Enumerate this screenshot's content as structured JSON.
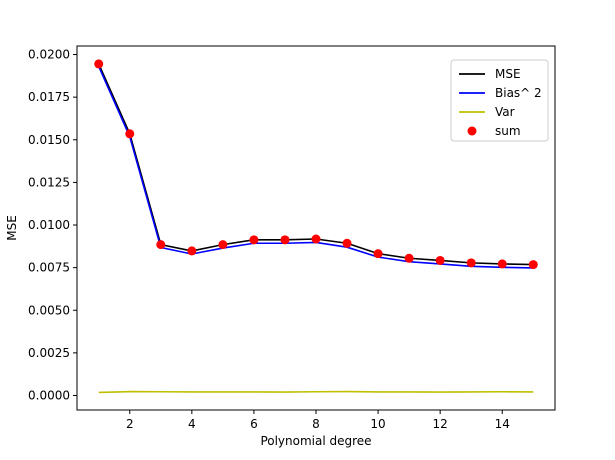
{
  "chart_data": {
    "type": "line",
    "title": "",
    "xlabel": "Polynomial degree",
    "ylabel": "MSE",
    "xlim": [
      0.3,
      15.7
    ],
    "ylim": [
      -0.00085,
      0.0205
    ],
    "xticks": [
      2,
      4,
      6,
      8,
      10,
      12,
      14
    ],
    "xtick_labels": [
      "2",
      "4",
      "6",
      "8",
      "10",
      "12",
      "14"
    ],
    "yticks": [
      0.0,
      0.0025,
      0.005,
      0.0075,
      0.01,
      0.0125,
      0.015,
      0.0175,
      0.02
    ],
    "ytick_labels": [
      "0.0000",
      "0.0025",
      "0.0050",
      "0.0075",
      "0.0100",
      "0.0125",
      "0.0150",
      "0.0175",
      "0.0200"
    ],
    "grid": false,
    "legend_position": "top-right",
    "x": [
      1,
      2,
      3,
      4,
      5,
      6,
      7,
      8,
      9,
      10,
      11,
      12,
      13,
      14,
      15
    ],
    "series": [
      {
        "name": "MSE",
        "kind": "line",
        "color": "#000000",
        "values": [
          0.01945,
          0.01535,
          0.00885,
          0.00848,
          0.00885,
          0.00913,
          0.00913,
          0.00918,
          0.00893,
          0.00832,
          0.00805,
          0.00792,
          0.00778,
          0.00772,
          0.00768
        ]
      },
      {
        "name": "Bias^ 2",
        "kind": "line",
        "color": "#0000ff",
        "values": [
          0.0193,
          0.01518,
          0.00868,
          0.0083,
          0.00865,
          0.00893,
          0.00893,
          0.00898,
          0.0087,
          0.00812,
          0.00785,
          0.00772,
          0.00758,
          0.00752,
          0.00748
        ]
      },
      {
        "name": "Var",
        "kind": "line",
        "color": "#bfbf00",
        "values": [
          0.00018,
          0.00023,
          0.00022,
          0.00021,
          0.00021,
          0.00021,
          0.0002,
          0.00022,
          0.00023,
          0.00021,
          0.00021,
          0.0002,
          0.00021,
          0.00022,
          0.00021
        ]
      },
      {
        "name": "sum",
        "kind": "scatter",
        "color": "#ff0000",
        "values": [
          0.01945,
          0.01535,
          0.00885,
          0.00848,
          0.00885,
          0.00913,
          0.00913,
          0.00918,
          0.00893,
          0.00832,
          0.00805,
          0.00792,
          0.00778,
          0.00772,
          0.00768
        ]
      }
    ]
  }
}
